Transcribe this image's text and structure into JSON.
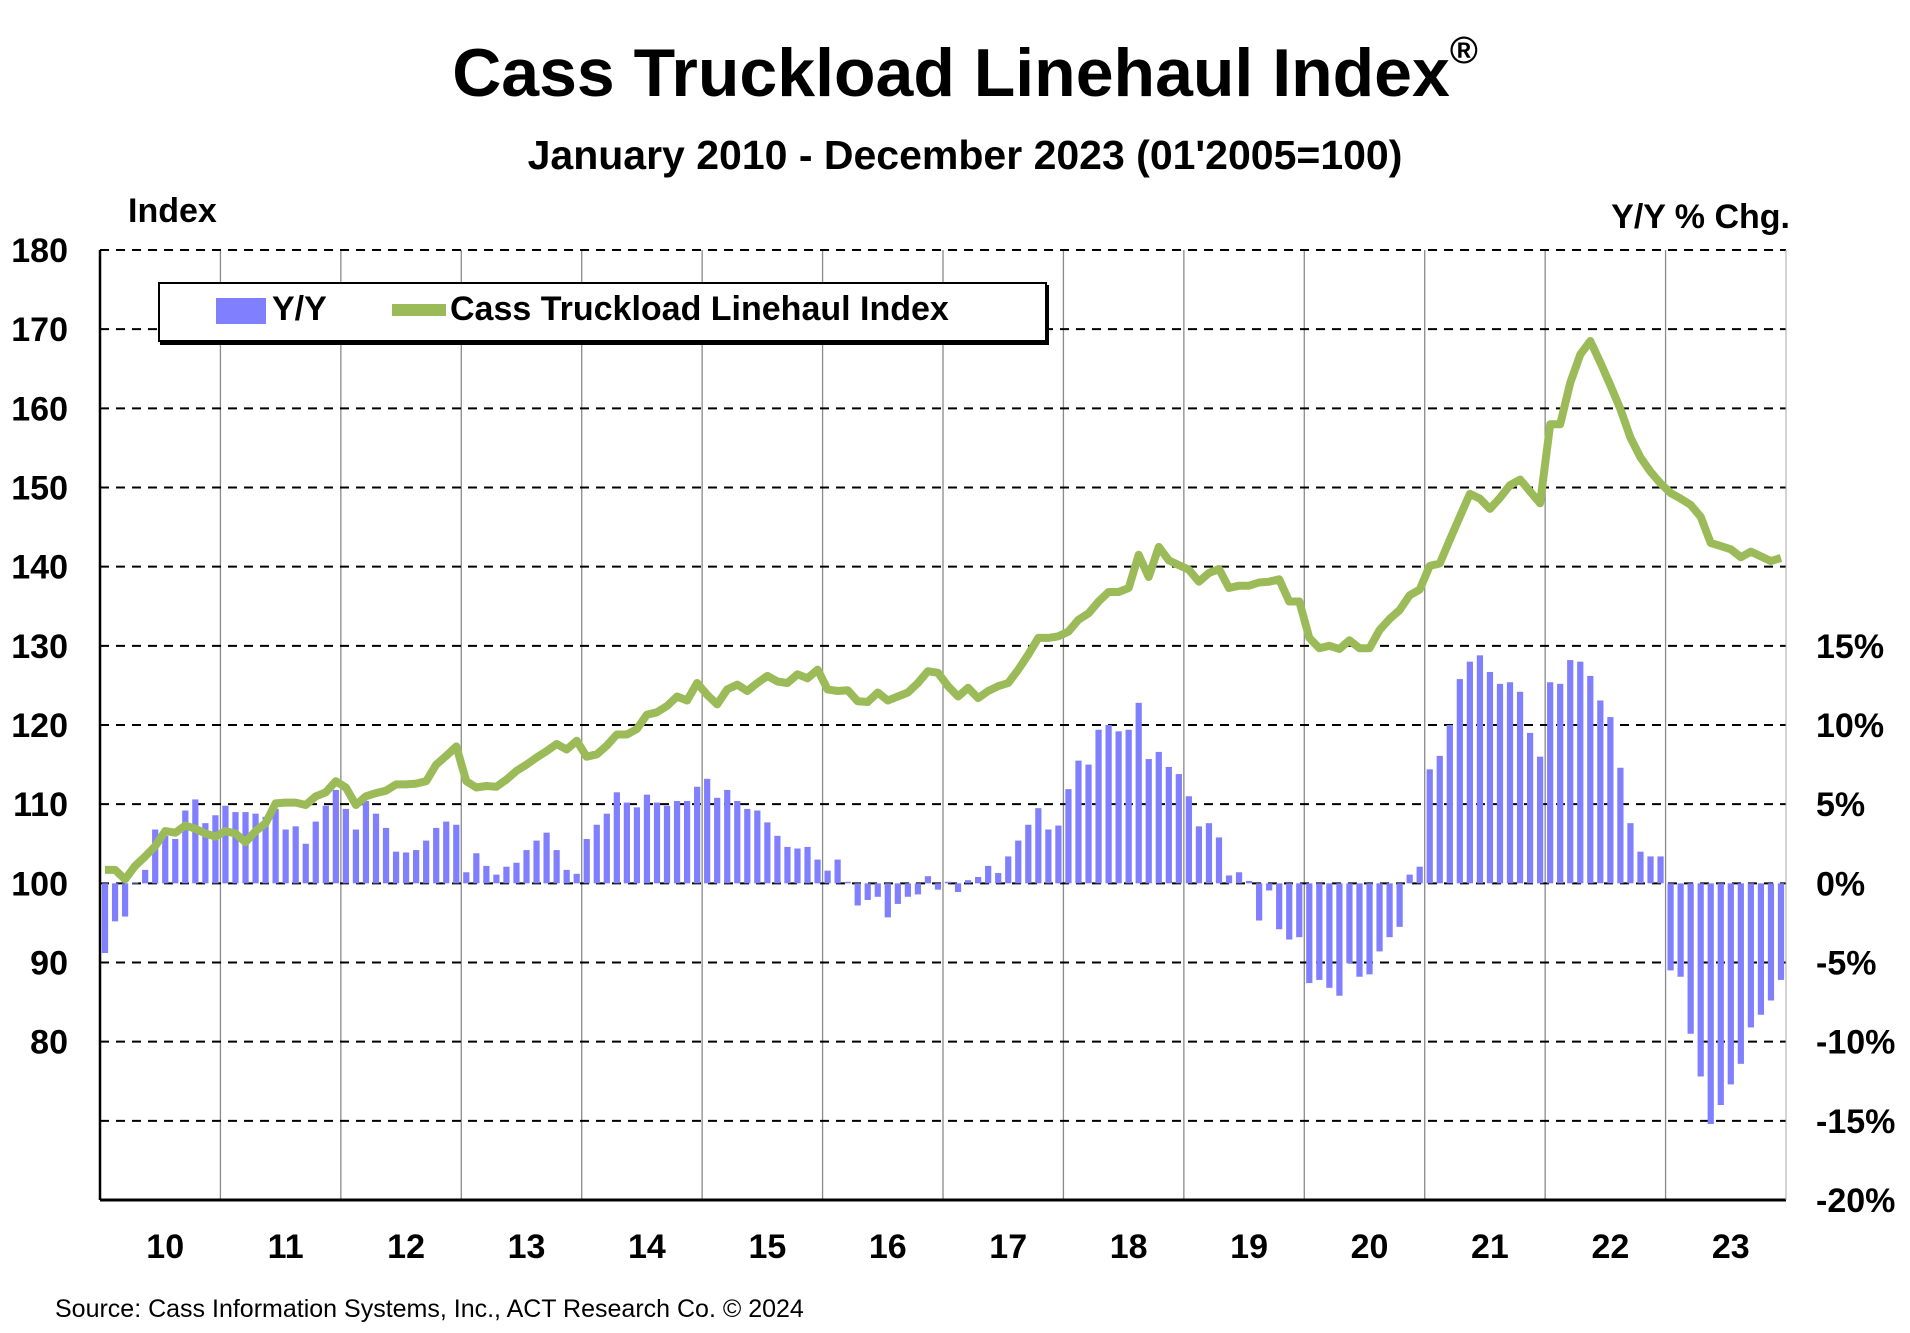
{
  "chart_data": {
    "type": "bar+line",
    "title": "Cass Truckload Linehaul Index",
    "title_mark": "®",
    "subtitle": "January 2010 - December 2023 (01'2005=100)",
    "ylabel_left": "Index",
    "ylabel_right": "Y/Y % Chg.",
    "ylim_left": [
      60,
      180
    ],
    "yticks_left": [
      {
        "v": 180,
        "label": "180"
      },
      {
        "v": 170,
        "label": "170"
      },
      {
        "v": 160,
        "label": "160"
      },
      {
        "v": 150,
        "label": "150"
      },
      {
        "v": 140,
        "label": "140"
      },
      {
        "v": 130,
        "label": "130"
      },
      {
        "v": 120,
        "label": "120"
      },
      {
        "v": 110,
        "label": "110"
      },
      {
        "v": 100,
        "label": "100"
      },
      {
        "v": 90,
        "label": "90"
      },
      {
        "v": 80,
        "label": "80"
      }
    ],
    "ylim_right": [
      -20,
      25
    ],
    "yticks_right": [
      {
        "v": 15,
        "label": "15%"
      },
      {
        "v": 10,
        "label": "10%"
      },
      {
        "v": 5,
        "label": "5%"
      },
      {
        "v": 0,
        "label": "0%"
      },
      {
        "v": -5,
        "label": "-5%"
      },
      {
        "v": -10,
        "label": "-10%"
      },
      {
        "v": -15,
        "label": "-15%"
      },
      {
        "v": -20,
        "label": "-20%"
      }
    ],
    "xtick_labels": [
      "10",
      "11",
      "12",
      "13",
      "14",
      "15",
      "16",
      "17",
      "18",
      "19",
      "20",
      "21",
      "22",
      "23"
    ],
    "x_frequency": "monthly",
    "grid": "horizontal dashed, vertical year separators",
    "legend": {
      "placement": "top-left",
      "entries": [
        "Y/Y",
        "Cass Truckload Linehaul Index"
      ]
    },
    "colors": {
      "bars": "#8080FF",
      "line": "#9BBB59"
    },
    "series": [
      {
        "name": "Y/Y",
        "type": "bar",
        "axis": "right",
        "values_by_year": {
          "2010": [
            -4.4,
            -2.4,
            -2.1,
            0.05,
            0.85,
            3.4,
            3.0,
            2.8,
            4.6,
            5.3,
            3.8,
            4.3
          ],
          "2011": [
            4.9,
            4.5,
            4.5,
            4.4,
            4.2,
            4.7,
            3.4,
            3.6,
            2.5,
            3.9,
            4.9,
            5.9
          ],
          "2012": [
            4.7,
            3.4,
            5.2,
            4.4,
            3.5,
            2.0,
            1.95,
            2.1,
            2.7,
            3.5,
            3.9,
            3.7
          ],
          "2013": [
            0.7,
            1.9,
            1.1,
            0.55,
            1.05,
            1.3,
            2.1,
            2.7,
            3.2,
            2.1,
            0.85,
            0.6
          ],
          "2014": [
            2.8,
            3.7,
            4.4,
            5.75,
            5.1,
            4.8,
            5.6,
            5.1,
            4.9,
            5.2,
            5.2,
            6.1
          ],
          "2015": [
            6.6,
            5.4,
            5.9,
            5.2,
            4.7,
            4.6,
            3.85,
            3.0,
            2.3,
            2.2,
            2.3,
            1.5
          ],
          "2016": [
            0.8,
            1.5,
            0.1,
            -1.4,
            -1.05,
            -0.85,
            -2.15,
            -1.3,
            -0.85,
            -0.7,
            0.45,
            -0.4
          ],
          "2017": [
            0.1,
            -0.55,
            0.2,
            0.4,
            1.1,
            0.65,
            1.7,
            2.7,
            3.7,
            4.75,
            3.4,
            3.65
          ],
          "2018": [
            5.95,
            7.75,
            7.5,
            9.7,
            10.0,
            9.6,
            9.7,
            11.4,
            7.85,
            8.3,
            7.35,
            6.9
          ],
          "2019": [
            5.5,
            3.6,
            3.8,
            2.9,
            0.5,
            0.7,
            0.15,
            -2.35,
            -0.45,
            -2.9,
            -3.55,
            -3.4
          ],
          "2020": [
            -6.3,
            -6.1,
            -6.6,
            -7.1,
            -5.05,
            -5.9,
            -5.75,
            -4.3,
            -3.4,
            -2.75,
            0.55,
            1.05
          ],
          "2021": [
            7.2,
            8.05,
            10.0,
            12.9,
            14.0,
            14.4,
            13.35,
            12.6,
            12.7,
            12.1,
            9.5,
            8.0
          ],
          "2022": [
            12.7,
            12.6,
            14.1,
            14.0,
            13.1,
            11.55,
            10.5,
            7.3,
            3.8,
            2.0,
            1.7,
            1.7
          ],
          "2023": [
            -5.5,
            -5.9,
            -9.5,
            -12.2,
            -15.2,
            -14.0,
            -12.7,
            -11.4,
            -9.1,
            -8.3,
            -7.4,
            -6.1
          ]
        }
      },
      {
        "name": "Cass Truckload Linehaul Index",
        "type": "line",
        "axis": "left",
        "values_by_year": {
          "2010": [
            101.7,
            101.7,
            100.5,
            102.2,
            103.4,
            104.7,
            106.6,
            106.4,
            107.3,
            106.9,
            106.3,
            105.9
          ],
          "2011": [
            106.6,
            106.3,
            105.2,
            106.6,
            107.6,
            110.1,
            110.2,
            110.2,
            109.9,
            111.0,
            111.5,
            112.9
          ],
          "2012": [
            112.1,
            109.9,
            111.0,
            111.4,
            111.7,
            112.5,
            112.5,
            112.6,
            112.9,
            115.0,
            116.1,
            117.3
          ],
          "2013": [
            112.9,
            112.1,
            112.3,
            112.2,
            113.1,
            114.2,
            115.0,
            115.9,
            116.7,
            117.6,
            116.9,
            118.0
          ],
          "2014": [
            116.0,
            116.3,
            117.4,
            118.8,
            118.8,
            119.5,
            121.3,
            121.6,
            122.4,
            123.6,
            123.1,
            125.3
          ],
          "2015": [
            123.8,
            122.6,
            124.5,
            125.1,
            124.3,
            125.3,
            126.2,
            125.5,
            125.3,
            126.4,
            125.9,
            127.0
          ],
          "2016": [
            124.5,
            124.3,
            124.4,
            123.0,
            122.9,
            124.1,
            123.1,
            123.6,
            124.1,
            125.3,
            126.8,
            126.6
          ],
          "2017": [
            124.9,
            123.6,
            124.7,
            123.4,
            124.3,
            124.9,
            125.3,
            127.0,
            128.9,
            131.0,
            131.0,
            131.2
          ],
          "2018": [
            131.8,
            133.3,
            134.1,
            135.6,
            136.8,
            136.8,
            137.3,
            141.5,
            138.7,
            142.5,
            140.8,
            140.2
          ],
          "2019": [
            139.6,
            138.1,
            139.2,
            139.7,
            137.3,
            137.6,
            137.6,
            138.0,
            138.1,
            138.4,
            135.6,
            135.6
          ],
          "2020": [
            131.0,
            129.7,
            130.0,
            129.6,
            130.7,
            129.7,
            129.7,
            132.0,
            133.4,
            134.5,
            136.4,
            137.1
          ],
          "2021": [
            140.1,
            140.4,
            143.4,
            146.3,
            149.2,
            148.6,
            147.3,
            148.7,
            150.3,
            151.0,
            149.5,
            148.0
          ],
          "2022": [
            158.0,
            158.0,
            163.2,
            166.8,
            168.5,
            165.8,
            162.9,
            159.9,
            156.3,
            153.8,
            152.0,
            150.5
          ],
          "2023": [
            149.3,
            148.6,
            147.8,
            146.3,
            143.0,
            142.6,
            142.2,
            141.2,
            141.9,
            141.3,
            140.7,
            141.1
          ]
        }
      }
    ],
    "source": "Source: Cass Information Systems, Inc., ACT Research Co. © 2024"
  }
}
